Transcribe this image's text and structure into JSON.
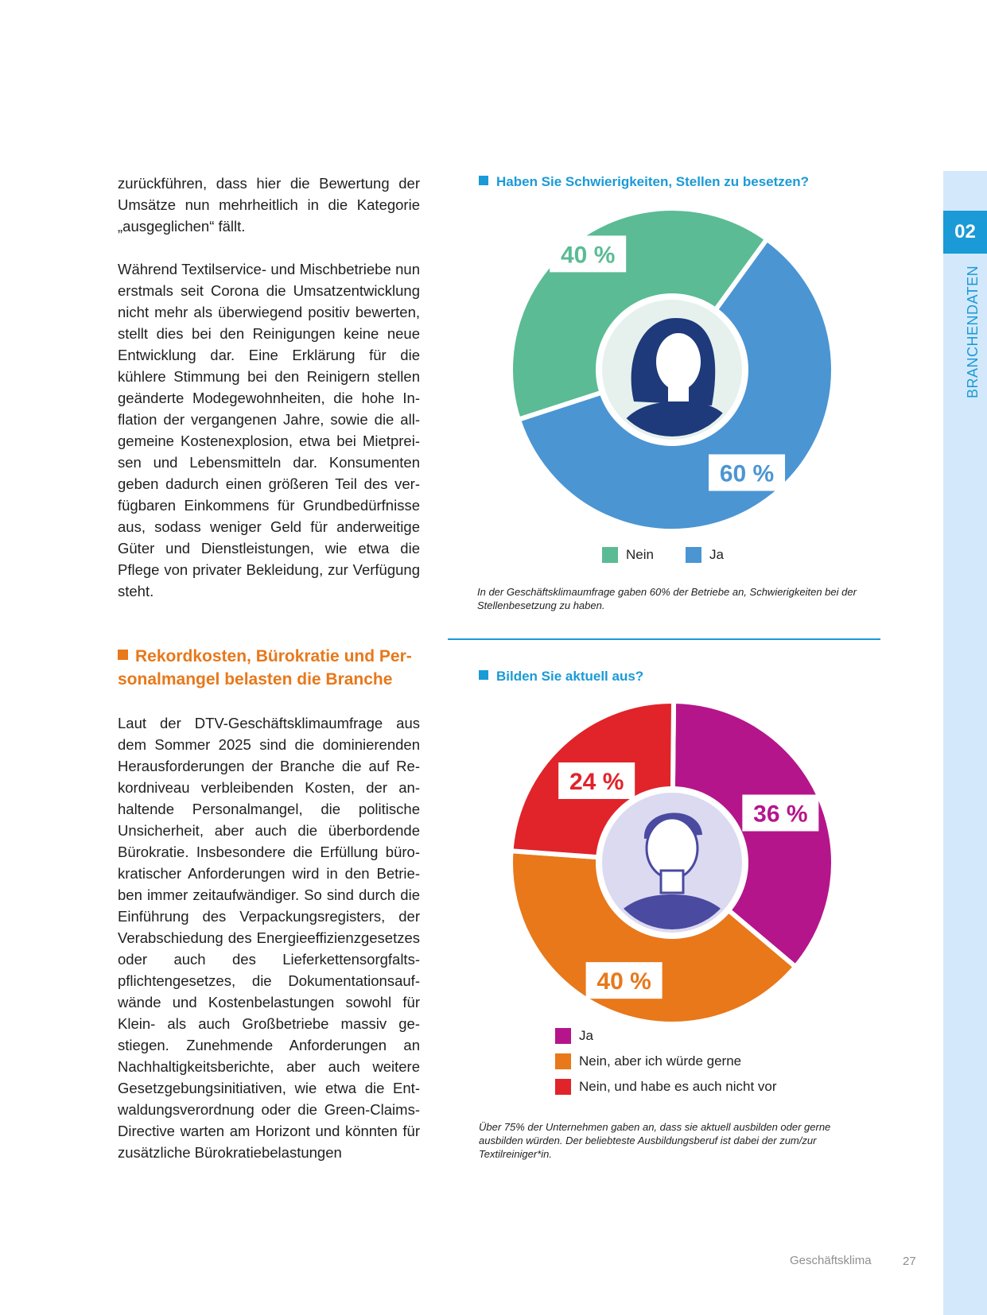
{
  "left_column": {
    "paragraph_1": "zurückführen, dass hier die Bewertung der Umsätze nun mehrheitlich in die Kategorie „ausgeglichen“ fällt.",
    "paragraph_2": "Während Textilservice- und Mischbetriebe nun erstmals seit Corona die Umsatzentwick­lung nicht mehr als überwiegend positiv be­werten, stellt dies bei den Reinigungen keine neue Entwicklung dar. Eine Erklärung für die kühlere Stimmung bei den Reinigern stellen geänderte Modegewohnheiten, die hohe In­flation der vergangenen Jahre, sowie die all­gemeine Kostenexplosion, etwa bei Mietprei­sen und Lebensmitteln dar. Konsumenten geben dadurch einen größeren Teil des ver­fügbaren Einkommens für Grundbedürfnis­se aus, sodass weniger Geld für anderweiti­ge Güter und Dienstleistungen, wie etwa die Pflege von privater Bekleidung, zur Verfü­gung steht.",
    "section_heading": "Rekordkosten, Bürokratie und Per­sonalmangel belasten die Branche",
    "paragraph_3": "Laut der DTV-Geschäftsklimaumfrage aus dem Sommer 2025 sind die dominierenden Herausforderungen der Branche die auf Re­kordniveau verbleibenden Kosten, der an­haltende Personalmangel, die politische Unsicherheit, aber auch die überbordende Bürokratie. Insbesondere die Erfüllung büro­kratischer Anforderungen wird in den Betrie­ben immer zeitaufwändiger. So sind durch die Einführung des Verpackungsregisters, der Verabschiedung des Energieeffizienzge­setzes oder auch des Lieferkettensorgfalts­pflichtengesetzes, die Dokumentationsauf­wände und Kostenbelastungen sowohl für Klein- als auch Großbetriebe massiv ge­stiegen. Zunehmende Anforderungen an Nachhaltigkeitsberichte, aber auch weitere Gesetzgebungsinitiativen, wie etwa die Ent­waldungsverordnung oder die Green-Claims-Directive warten am Horizont und könn­ten für zusätzliche Bürokratiebelastungen"
  },
  "colors": {
    "accent_blue": "#1a9ad6",
    "heading_orange": "#e8781a",
    "nein_green": "#5bbb94",
    "ja_blue": "#4b95d3",
    "ja_magenta": "#b5158b",
    "nein_gerne_orange": "#e8781a",
    "nein_vor_red": "#e0242a"
  },
  "chart1": {
    "title": "Haben Sie Schwierigkeiten, Stellen zu besetzen?",
    "caption": "In der Geschäftsklimaumfrage gaben 60% der Betriebe an, Schwierigkeiten bei der Stellenbesetzung zu haben.",
    "center_icon": "woman-avatar-icon",
    "legend": [
      "Nein",
      "Ja"
    ]
  },
  "chart2": {
    "title": "Bilden Sie aktuell aus?",
    "caption": "Über 75% der Unternehmen gaben an, dass sie aktuell ausbilden oder gerne ausbilden würden. Der beliebteste Ausbildungsberuf ist dabei der zum/zur Textilreiniger*in.",
    "center_icon": "man-avatar-icon",
    "legend": [
      "Ja",
      "Nein, aber ich würde gerne",
      "Nein, und habe es auch nicht vor"
    ]
  },
  "chart_data": [
    {
      "type": "pie",
      "title": "Haben Sie Schwierigkeiten, Stellen zu besetzen?",
      "categories": [
        "Nein",
        "Ja"
      ],
      "values": [
        40,
        60
      ],
      "labels": [
        "40 %",
        "60 %"
      ],
      "colors": [
        "#5bbb94",
        "#4b95d3"
      ],
      "legend_position": "bottom"
    },
    {
      "type": "pie",
      "title": "Bilden Sie aktuell aus?",
      "categories": [
        "Ja",
        "Nein, aber ich würde gerne",
        "Nein, und habe es auch nicht vor"
      ],
      "values": [
        36,
        40,
        24
      ],
      "labels": [
        "36 %",
        "40 %",
        "24 %"
      ],
      "colors": [
        "#b5158b",
        "#e8781a",
        "#e0242a"
      ],
      "legend_position": "bottom"
    }
  ],
  "sidebar": {
    "chapter_number": "02",
    "chapter_label": "BRANCHENDATEN"
  },
  "footer": {
    "section_label": "Geschäftsklima",
    "page_number": "27"
  }
}
